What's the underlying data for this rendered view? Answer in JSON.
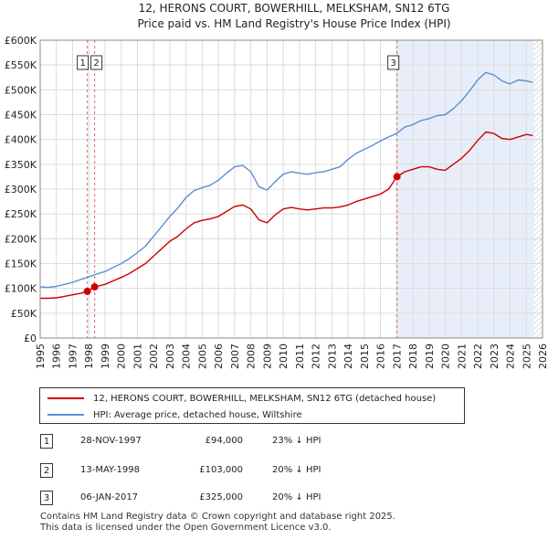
{
  "title_line1": "12, HERONS COURT, BOWERHILL, MELKSHAM, SN12 6TG",
  "title_line2": "Price paid vs. HM Land Registry's House Price Index (HPI)",
  "legend": {
    "red": "12, HERONS COURT, BOWERHILL, MELKSHAM, SN12 6TG (detached house)",
    "blue": "HPI: Average price, detached house, Wiltshire"
  },
  "transactions": [
    {
      "num": "1",
      "date": "28-NOV-1997",
      "price": "£94,000",
      "hpi": "23% ↓ HPI"
    },
    {
      "num": "2",
      "date": "13-MAY-1998",
      "price": "£103,000",
      "hpi": "20% ↓ HPI"
    },
    {
      "num": "3",
      "date": "06-JAN-2017",
      "price": "£325,000",
      "hpi": "20% ↓ HPI"
    }
  ],
  "footer": {
    "line1": "Contains HM Land Registry data © Crown copyright and database right 2025.",
    "line2": "This data is licensed under the Open Government Licence v3.0."
  },
  "colors": {
    "red": "#cc0000",
    "blue": "#5b8fcf",
    "grid": "#dcdcdc",
    "shade": "#e8eef9",
    "hatch": "#bbbbbb"
  },
  "chart_data": {
    "type": "line",
    "xlim": [
      1995,
      2026
    ],
    "ylim": [
      0,
      600000
    ],
    "y_ticks": [
      0,
      50000,
      100000,
      150000,
      200000,
      250000,
      300000,
      350000,
      400000,
      450000,
      500000,
      550000,
      600000
    ],
    "y_tick_labels": [
      "£0",
      "£50K",
      "£100K",
      "£150K",
      "£200K",
      "£250K",
      "£300K",
      "£350K",
      "£400K",
      "£450K",
      "£500K",
      "£550K",
      "£600K"
    ],
    "x_ticks": [
      1995,
      1996,
      1997,
      1998,
      1999,
      2000,
      2001,
      2002,
      2003,
      2004,
      2005,
      2006,
      2007,
      2008,
      2009,
      2010,
      2011,
      2012,
      2013,
      2014,
      2015,
      2016,
      2017,
      2018,
      2019,
      2020,
      2021,
      2022,
      2023,
      2024,
      2025,
      2026
    ],
    "x_tick_labels": [
      "1995",
      "1996",
      "1997",
      "1998",
      "1999",
      "2000",
      "2001",
      "2002",
      "2003",
      "2004",
      "2005",
      "2006",
      "2007",
      "2008",
      "2009",
      "2010",
      "2011",
      "2012",
      "2013",
      "2014",
      "2015",
      "2016",
      "2017",
      "2018",
      "2019",
      "2020",
      "2021",
      "2022",
      "2023",
      "2024",
      "2025",
      "2026"
    ],
    "shaded_region": [
      2017.02,
      2025.5
    ],
    "hatched_region": [
      2025.5,
      2026
    ],
    "sale_markers": [
      {
        "label": "1",
        "x": 1997.91,
        "y": 94000
      },
      {
        "label": "2",
        "x": 1998.36,
        "y": 103000
      },
      {
        "label": "3",
        "x": 2017.02,
        "y": 325000
      }
    ],
    "series": [
      {
        "name": "HPI: Average price, detached house, Wiltshire",
        "color": "#5b8fcf",
        "x": [
          1995,
          1995.5,
          1996,
          1996.5,
          1997,
          1997.5,
          1997.9,
          1998.4,
          1999,
          1999.5,
          2000,
          2000.5,
          2001,
          2001.5,
          2002,
          2002.5,
          2003,
          2003.5,
          2004,
          2004.5,
          2005,
          2005.5,
          2006,
          2006.5,
          2007,
          2007.5,
          2008,
          2008.5,
          2009,
          2009.5,
          2010,
          2010.5,
          2011,
          2011.5,
          2012,
          2012.5,
          2013,
          2013.5,
          2014,
          2014.5,
          2015,
          2015.5,
          2016,
          2016.5,
          2017,
          2017.5,
          2018,
          2018.5,
          2019,
          2019.5,
          2020,
          2020.5,
          2021,
          2021.5,
          2022,
          2022.5,
          2023,
          2023.5,
          2024,
          2024.5,
          2025,
          2025.4
        ],
        "values": [
          103000,
          102000,
          104000,
          108000,
          112000,
          118000,
          122000,
          128000,
          134000,
          142000,
          150000,
          160000,
          172000,
          185000,
          205000,
          225000,
          245000,
          262000,
          283000,
          297000,
          303000,
          308000,
          318000,
          332000,
          345000,
          348000,
          335000,
          305000,
          298000,
          315000,
          330000,
          335000,
          332000,
          330000,
          333000,
          335000,
          340000,
          345000,
          360000,
          372000,
          380000,
          388000,
          397000,
          405000,
          412000,
          425000,
          430000,
          438000,
          442000,
          448000,
          450000,
          462000,
          478000,
          498000,
          520000,
          535000,
          530000,
          518000,
          512000,
          520000,
          518000,
          515000
        ]
      },
      {
        "name": "12, HERONS COURT, BOWERHILL, MELKSHAM, SN12 6TG (detached house)",
        "color": "#cc0000",
        "x": [
          1995,
          1995.5,
          1996,
          1996.5,
          1997,
          1997.5,
          1997.91,
          1998.36,
          1999,
          1999.5,
          2000,
          2000.5,
          2001,
          2001.5,
          2002,
          2002.5,
          2003,
          2003.5,
          2004,
          2004.5,
          2005,
          2005.5,
          2006,
          2006.5,
          2007,
          2007.5,
          2008,
          2008.5,
          2009,
          2009.5,
          2010,
          2010.5,
          2011,
          2011.5,
          2012,
          2012.5,
          2013,
          2013.5,
          2014,
          2014.5,
          2015,
          2015.5,
          2016,
          2016.5,
          2017.02,
          2017.5,
          2018,
          2018.5,
          2019,
          2019.5,
          2020,
          2020.5,
          2021,
          2021.5,
          2022,
          2022.5,
          2023,
          2023.5,
          2024,
          2024.5,
          2025,
          2025.4
        ],
        "values": [
          80000,
          80000,
          81000,
          84000,
          87000,
          90000,
          94000,
          103000,
          108000,
          115000,
          122000,
          130000,
          140000,
          150000,
          165000,
          180000,
          195000,
          205000,
          220000,
          232000,
          237000,
          240000,
          245000,
          255000,
          265000,
          268000,
          260000,
          238000,
          232000,
          248000,
          260000,
          263000,
          260000,
          258000,
          260000,
          262000,
          262000,
          264000,
          268000,
          275000,
          280000,
          285000,
          290000,
          300000,
          325000,
          335000,
          340000,
          345000,
          345000,
          340000,
          338000,
          350000,
          362000,
          378000,
          398000,
          415000,
          412000,
          402000,
          400000,
          405000,
          410000,
          408000
        ]
      }
    ]
  }
}
